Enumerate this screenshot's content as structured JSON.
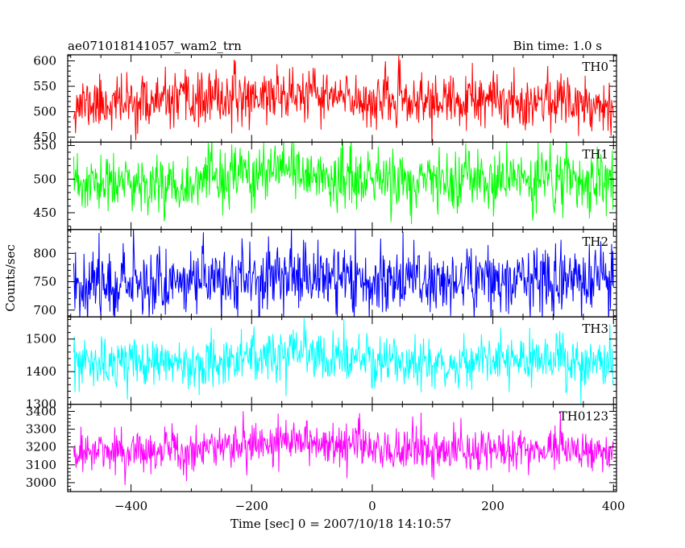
{
  "header": {
    "title": "ae071018141057_wam2_trn",
    "bin_time": "Bin time: 1.0 s"
  },
  "chart_data": {
    "type": "line",
    "title": "ae071018141057_wam2_trn",
    "subtitle": "Bin time: 1.0 s",
    "xlabel": "Time [sec] 0 = 2007/10/18 14:10:57",
    "ylabel": "Counts/sec",
    "xlim": [
      -505,
      405
    ],
    "x_ticks": [
      -400,
      -200,
      0,
      200,
      400
    ],
    "x_tick_labels": [
      "−400",
      "−200",
      "0",
      "200",
      "400"
    ],
    "x_range": [
      -495,
      400
    ],
    "grid": false,
    "panels": [
      {
        "name": "TH0",
        "color": "#ff0000",
        "ylim": [
          440,
          612
        ],
        "y_ticks": [
          450,
          500,
          550,
          600
        ],
        "baseline": 520,
        "noise": 26,
        "trend": [
          [
            -495,
            515
          ],
          [
            -300,
            520
          ],
          [
            -150,
            535
          ],
          [
            0,
            522
          ],
          [
            150,
            518
          ],
          [
            300,
            524
          ],
          [
            400,
            515
          ]
        ],
        "seed": 11
      },
      {
        "name": "TH1",
        "color": "#00ff00",
        "ylim": [
          425,
          555
        ],
        "y_ticks": [
          450,
          500,
          550
        ],
        "baseline": 495,
        "noise": 22,
        "trend": [
          [
            -495,
            490
          ],
          [
            -300,
            495
          ],
          [
            -150,
            510
          ],
          [
            0,
            497
          ],
          [
            150,
            495
          ],
          [
            300,
            500
          ],
          [
            400,
            493
          ]
        ],
        "seed": 23
      },
      {
        "name": "TH2",
        "color": "#0000ff",
        "ylim": [
          688,
          842
        ],
        "y_ticks": [
          700,
          750,
          800
        ],
        "baseline": 752,
        "noise": 30,
        "trend": [
          [
            -495,
            748
          ],
          [
            -300,
            752
          ],
          [
            -150,
            760
          ],
          [
            0,
            753
          ],
          [
            150,
            752
          ],
          [
            300,
            756
          ],
          [
            400,
            750
          ]
        ],
        "seed": 37
      },
      {
        "name": "TH3",
        "color": "#00ffff",
        "ylim": [
          1300,
          1568
        ],
        "y_ticks": [
          1300,
          1400,
          1500
        ],
        "baseline": 1430,
        "noise": 38,
        "trend": [
          [
            -495,
            1420
          ],
          [
            -300,
            1428
          ],
          [
            -150,
            1455
          ],
          [
            0,
            1430
          ],
          [
            150,
            1425
          ],
          [
            300,
            1435
          ],
          [
            400,
            1422
          ]
        ],
        "seed": 53
      },
      {
        "name": "TH0123",
        "color": "#ff00ff",
        "ylim": [
          2950,
          3440
        ],
        "y_ticks": [
          3000,
          3100,
          3200,
          3300,
          3400
        ],
        "baseline": 3180,
        "noise": 62,
        "trend": [
          [
            -495,
            3170
          ],
          [
            -300,
            3180
          ],
          [
            -150,
            3250
          ],
          [
            0,
            3190
          ],
          [
            150,
            3175
          ],
          [
            300,
            3200
          ],
          [
            400,
            3165
          ]
        ],
        "seed": 71
      }
    ]
  }
}
